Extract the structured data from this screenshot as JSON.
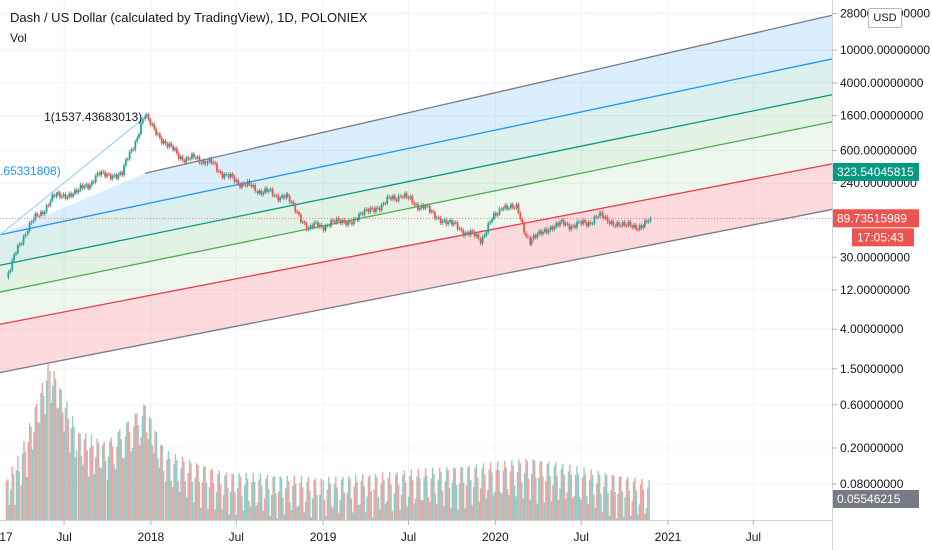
{
  "header": {
    "title": "Dash / US Dollar (calculated by TradingView), 1D, POLONIEX",
    "volume_label": "Vol",
    "currency": "USD"
  },
  "colors": {
    "up": "#26a69a",
    "down": "#ef5350",
    "price_badge": "#ef5350",
    "level_badge": "#089981",
    "volume_badge": "#787b86",
    "channel_blue": "#2196f3",
    "channel_teal": "#089981",
    "channel_green": "#4caf50",
    "channel_red": "#f23645",
    "channel_gray": "#787b86"
  },
  "chart_data": {
    "type": "line",
    "scale": "log",
    "y_ticks": [
      "28000.00000000",
      "10000.00000000",
      "4000.00000000",
      "1600.00000000",
      "600.00000000",
      "240.00000000",
      "30.00000000",
      "12.00000000",
      "4.00000000",
      "1.50000000",
      "0.60000000",
      "0.20000000",
      "0.08000000"
    ],
    "x_ticks": [
      "17",
      "Jul",
      "2018",
      "Jul",
      "2019",
      "Jul",
      "2020",
      "Jul",
      "2021",
      "Jul"
    ],
    "price_series": [
      [
        "2017-03-01",
        18
      ],
      [
        "2017-04-15",
        70
      ],
      [
        "2017-06-15",
        170
      ],
      [
        "2017-08-01",
        190
      ],
      [
        "2017-09-15",
        300
      ],
      [
        "2017-11-01",
        320
      ],
      [
        "2017-12-20",
        1537
      ],
      [
        "2018-01-20",
        900
      ],
      [
        "2018-03-01",
        500
      ],
      [
        "2018-05-01",
        450
      ],
      [
        "2018-06-15",
        280
      ],
      [
        "2018-08-15",
        200
      ],
      [
        "2018-10-15",
        160
      ],
      [
        "2018-12-01",
        70
      ],
      [
        "2019-01-15",
        75
      ],
      [
        "2019-03-15",
        90
      ],
      [
        "2019-05-01",
        130
      ],
      [
        "2019-06-15",
        175
      ],
      [
        "2019-07-01",
        150
      ],
      [
        "2019-08-15",
        110
      ],
      [
        "2019-10-01",
        75
      ],
      [
        "2019-12-01",
        50
      ],
      [
        "2020-01-15",
        130
      ],
      [
        "2020-02-15",
        115
      ],
      [
        "2020-03-15",
        45
      ],
      [
        "2020-05-01",
        75
      ],
      [
        "2020-07-01",
        75
      ],
      [
        "2020-08-15",
        95
      ],
      [
        "2020-10-01",
        70
      ],
      [
        "2020-11-10",
        75
      ],
      [
        "2020-11-25",
        89.73515989
      ]
    ],
    "volume_series": [
      [
        "2017-03-01",
        0.06
      ],
      [
        "2017-04-01",
        0.12
      ],
      [
        "2017-06-01",
        1.2
      ],
      [
        "2017-08-01",
        0.2
      ],
      [
        "2017-10-01",
        0.15
      ],
      [
        "2017-12-20",
        0.4
      ],
      [
        "2018-02-01",
        0.12
      ],
      [
        "2018-06-01",
        0.07
      ],
      [
        "2019-01-01",
        0.06
      ],
      [
        "2019-06-01",
        0.07
      ],
      [
        "2020-01-15",
        0.09
      ],
      [
        "2020-03-15",
        0.1
      ],
      [
        "2020-11-25",
        0.05546215
      ]
    ],
    "fib_channel_origin_label": "1(1537.43683013)",
    "fib_left_label": ".65331808)",
    "fib_channel_lines": [
      {
        "start": [
          "2016-11-01",
          90
        ],
        "end": [
          "2021-12-31",
          28000
        ],
        "color": "#787b86"
      },
      {
        "start": [
          "2016-11-01",
          42
        ],
        "end": [
          "2021-12-31",
          8200
        ],
        "color": "#2196f3"
      },
      {
        "start": [
          "2016-11-01",
          18
        ],
        "end": [
          "2021-12-31",
          3000
        ],
        "color": "#089981"
      },
      {
        "start": [
          "2016-11-01",
          8.5
        ],
        "end": [
          "2021-12-31",
          1400
        ],
        "color": "#4caf50"
      },
      {
        "start": [
          "2016-11-01",
          3.5
        ],
        "end": [
          "2021-12-31",
          430
        ],
        "color": "#f23645"
      },
      {
        "start": [
          "2016-11-01",
          0.9
        ],
        "end": [
          "2021-12-31",
          120
        ],
        "color": "#787b86"
      }
    ],
    "badges": {
      "level": "323.54045815",
      "price": "89.73515989",
      "countdown": "17:05:43",
      "volume": "0.05546215"
    }
  }
}
